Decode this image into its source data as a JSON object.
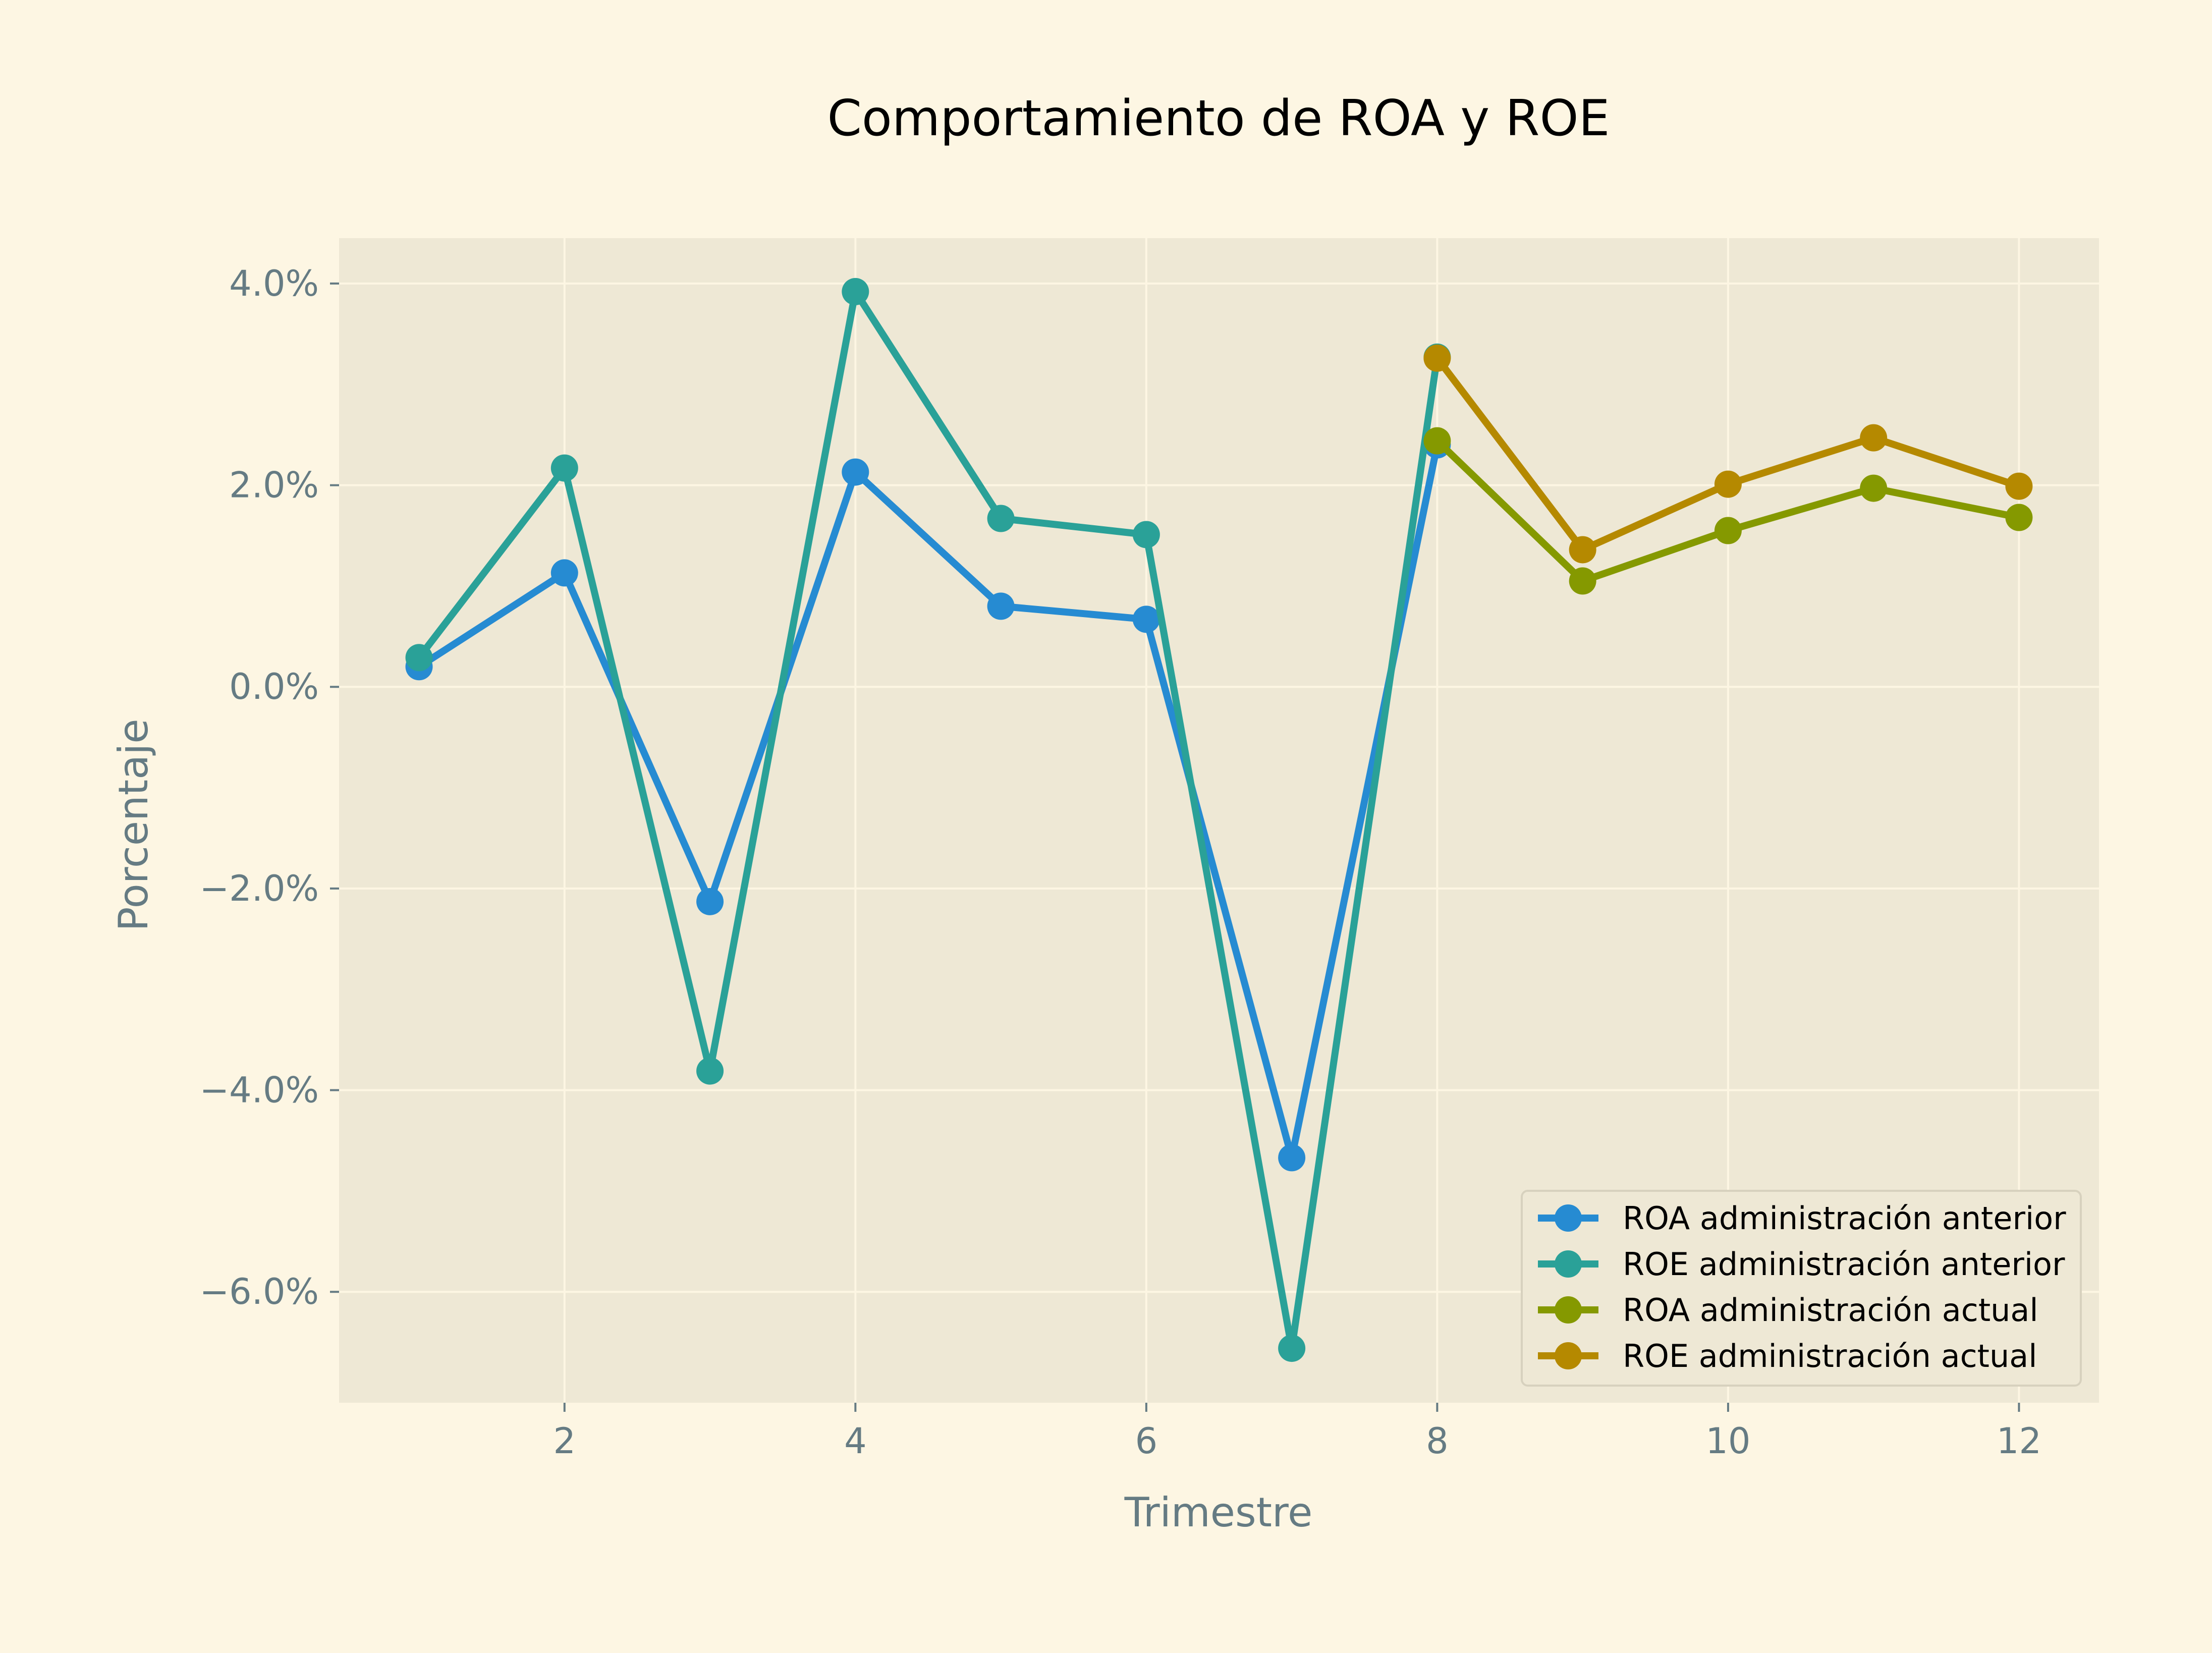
{
  "chart_data": {
    "type": "line",
    "title": "Comportamiento de ROA y ROE",
    "xlabel": "Trimestre",
    "ylabel": "Porcentaje",
    "xlim": [
      0.45,
      12.55
    ],
    "ylim": [
      -7.1,
      4.45
    ],
    "x_ticks": [
      2,
      4,
      6,
      8,
      10,
      12
    ],
    "x_tick_labels": [
      "2",
      "4",
      "6",
      "8",
      "10",
      "12"
    ],
    "y_ticks": [
      -6,
      -4,
      -2,
      0,
      2,
      4
    ],
    "y_tick_labels": [
      "−6.0%",
      "−4.0%",
      "−2.0%",
      "0.0%",
      "2.0%",
      "4.0%"
    ],
    "grid": true,
    "legend_position": "lower-right",
    "series": [
      {
        "name": "ROA administración anterior",
        "color": "#268bd2",
        "x": [
          1,
          2,
          3,
          4,
          5,
          6,
          7,
          8
        ],
        "y": [
          0.2,
          1.13,
          -2.13,
          2.13,
          0.8,
          0.67,
          -4.67,
          2.4
        ]
      },
      {
        "name": "ROE administración anterior",
        "color": "#2aa198",
        "x": [
          1,
          2,
          3,
          4,
          5,
          6,
          7,
          8
        ],
        "y": [
          0.29,
          2.17,
          -3.81,
          3.92,
          1.67,
          1.51,
          -6.56,
          3.27
        ]
      },
      {
        "name": "ROA administración actual",
        "color": "#859900",
        "x": [
          8,
          9,
          10,
          11,
          12
        ],
        "y": [
          2.44,
          1.05,
          1.55,
          1.97,
          1.68
        ]
      },
      {
        "name": "ROE administración actual",
        "color": "#b58900",
        "x": [
          8,
          9,
          10,
          11,
          12
        ],
        "y": [
          3.26,
          1.36,
          2.01,
          2.47,
          1.99
        ]
      }
    ]
  },
  "colors": {
    "figure_bg": "#fdf6e3",
    "axes_bg": "#eee8d5",
    "grid": "#fdf6e3",
    "tick_text": "#657b83",
    "title_text": "#000000"
  }
}
